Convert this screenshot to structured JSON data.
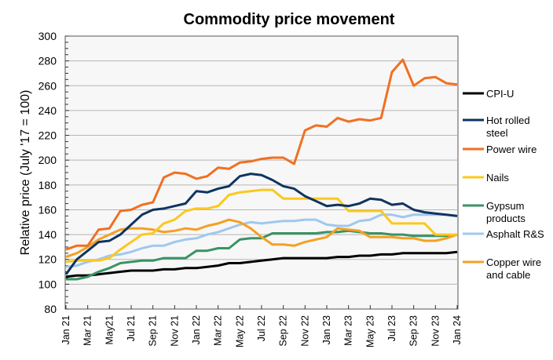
{
  "chart_data": {
    "type": "line",
    "title": "Commodity price movement",
    "xlabel": "",
    "ylabel": "Relative price (July '17 = 100)",
    "ylim": [
      80,
      300
    ],
    "yticks": [
      80,
      100,
      120,
      140,
      160,
      180,
      200,
      220,
      240,
      260,
      280,
      300
    ],
    "grid": true,
    "legend_position": "right",
    "x": [
      "Jan 21",
      "Feb 21",
      "Mar 21",
      "Apr 21",
      "May21",
      "Jun 21",
      "Jul 21",
      "Aug 21",
      "Sep 21",
      "Oct 21",
      "Nov 21",
      "Dec 21",
      "Jan 22",
      "Feb 22",
      "Mar 22",
      "Apr 22",
      "May 22",
      "Jun 22",
      "Jul 22",
      "Aug 22",
      "Sep 22",
      "Oct 22",
      "Nov 22",
      "Dec 22",
      "Jan 23",
      "Feb 23",
      "Mar 23",
      "Apr 23",
      "May 23",
      "Jun 23",
      "Jul 23",
      "Aug 23",
      "Sep 23",
      "Oct 23",
      "Nov 23",
      "Dec 23",
      "Jan 24"
    ],
    "xtick_labels": [
      "Jan 21",
      "Mar 21",
      "May21",
      "Jul 21",
      "Sep 21",
      "Nov 21",
      "Jan 22",
      "Mar 22",
      "May 22",
      "Jul 22",
      "Sep 22",
      "Nov 22",
      "Jan 23",
      "Mar 23",
      "May 23",
      "Jul 23",
      "Sep 23",
      "Nov 23",
      "Jan 24"
    ],
    "series": [
      {
        "name": "CPI-U",
        "legend": [
          "CPI-U"
        ],
        "color": "#000000",
        "values": [
          106,
          107,
          107,
          108,
          109,
          110,
          111,
          111,
          111,
          112,
          112,
          113,
          113,
          114,
          115,
          117,
          117,
          118,
          119,
          120,
          121,
          121,
          121,
          121,
          121,
          122,
          122,
          123,
          123,
          124,
          124,
          125,
          125,
          125,
          125,
          125,
          126
        ]
      },
      {
        "name": "Hot rolled steel",
        "legend": [
          "Hot rolled",
          "steel"
        ],
        "color": "#0f3460",
        "values": [
          108,
          120,
          127,
          134,
          135,
          140,
          148,
          156,
          160,
          161,
          163,
          165,
          175,
          174,
          177,
          179,
          187,
          189,
          188,
          184,
          179,
          177,
          171,
          167,
          163,
          164,
          163,
          165,
          169,
          168,
          164,
          165,
          160,
          158,
          157,
          156,
          155
        ]
      },
      {
        "name": "Power wire",
        "legend": [
          "Power wire"
        ],
        "color": "#f07022",
        "values": [
          128,
          131,
          131,
          144,
          145,
          159,
          160,
          164,
          166,
          186,
          190,
          189,
          185,
          187,
          194,
          193,
          198,
          199,
          201,
          202,
          202,
          197,
          224,
          228,
          227,
          234,
          231,
          233,
          232,
          234,
          271,
          281,
          260,
          266,
          267,
          262,
          261
        ]
      },
      {
        "name": "Nails",
        "legend": [
          "Nails"
        ],
        "color": "#fbc81e",
        "values": [
          118,
          119,
          119,
          119,
          121,
          128,
          134,
          140,
          141,
          149,
          152,
          159,
          161,
          161,
          163,
          172,
          174,
          175,
          176,
          176,
          169,
          169,
          169,
          169,
          169,
          169,
          159,
          159,
          159,
          159,
          149,
          149,
          149,
          149,
          140,
          140,
          140
        ]
      },
      {
        "name": "Gypsum products",
        "legend": [
          "Gypsum",
          "products"
        ],
        "color": "#3a9364",
        "values": [
          104,
          104,
          106,
          110,
          113,
          117,
          118,
          119,
          119,
          121,
          121,
          121,
          127,
          127,
          129,
          129,
          136,
          137,
          137,
          141,
          141,
          141,
          141,
          141,
          142,
          142,
          143,
          142,
          141,
          141,
          140,
          140,
          139,
          139,
          139,
          139,
          140
        ]
      },
      {
        "name": "Asphalt R&S",
        "legend": [
          "Asphalt R&S"
        ],
        "color": "#9fc8ee",
        "values": [
          114,
          115,
          118,
          120,
          123,
          124,
          126,
          129,
          131,
          131,
          134,
          136,
          137,
          140,
          142,
          145,
          148,
          150,
          149,
          150,
          151,
          151,
          152,
          152,
          148,
          147,
          147,
          151,
          152,
          156,
          156,
          154,
          156,
          156,
          156,
          156,
          155
        ]
      },
      {
        "name": "Copper wire and cable",
        "legend": [
          "Copper wire",
          "and cable"
        ],
        "color": "#f4a024",
        "values": [
          122,
          125,
          130,
          136,
          140,
          144,
          145,
          145,
          144,
          142,
          143,
          145,
          144,
          147,
          149,
          152,
          150,
          145,
          138,
          132,
          132,
          131,
          134,
          136,
          138,
          145,
          144,
          143,
          138,
          138,
          138,
          137,
          137,
          135,
          135,
          137,
          140
        ]
      }
    ]
  }
}
